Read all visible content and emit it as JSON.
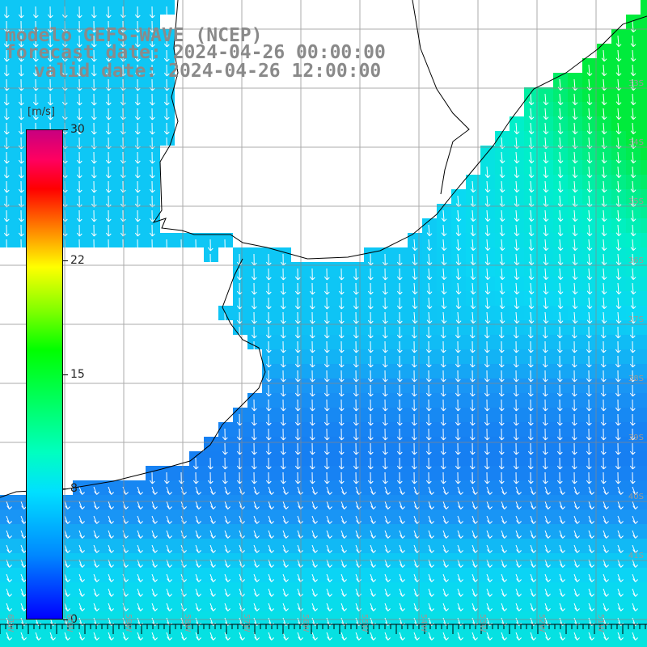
{
  "title": {
    "line1": "modelo GEFS-WAVE (NCEP)",
    "line2": "forecast date: 2024-04-26 00:00:00",
    "line3": "valid date: 2024-04-26 12:00:00"
  },
  "colorbar": {
    "unit": "[m/s]",
    "min": 0,
    "max": 30,
    "ticks": [
      "30",
      "22",
      "15",
      "8",
      "0"
    ],
    "tick_values": [
      30,
      22,
      15,
      8,
      0
    ]
  },
  "map": {
    "lat_labels": [
      "33S",
      "34S",
      "35S",
      "36S",
      "37S",
      "38S",
      "39S",
      "40S",
      "41S"
    ],
    "lon_labels": [
      "61W",
      "60W",
      "59W",
      "58W",
      "57W",
      "56W",
      "55W",
      "54W",
      "53W",
      "52W",
      "51W"
    ],
    "colors": {
      "land": "#ffffff",
      "coast": "#000000",
      "grid": "#888888",
      "arrow": "#ffffff"
    }
  }
}
